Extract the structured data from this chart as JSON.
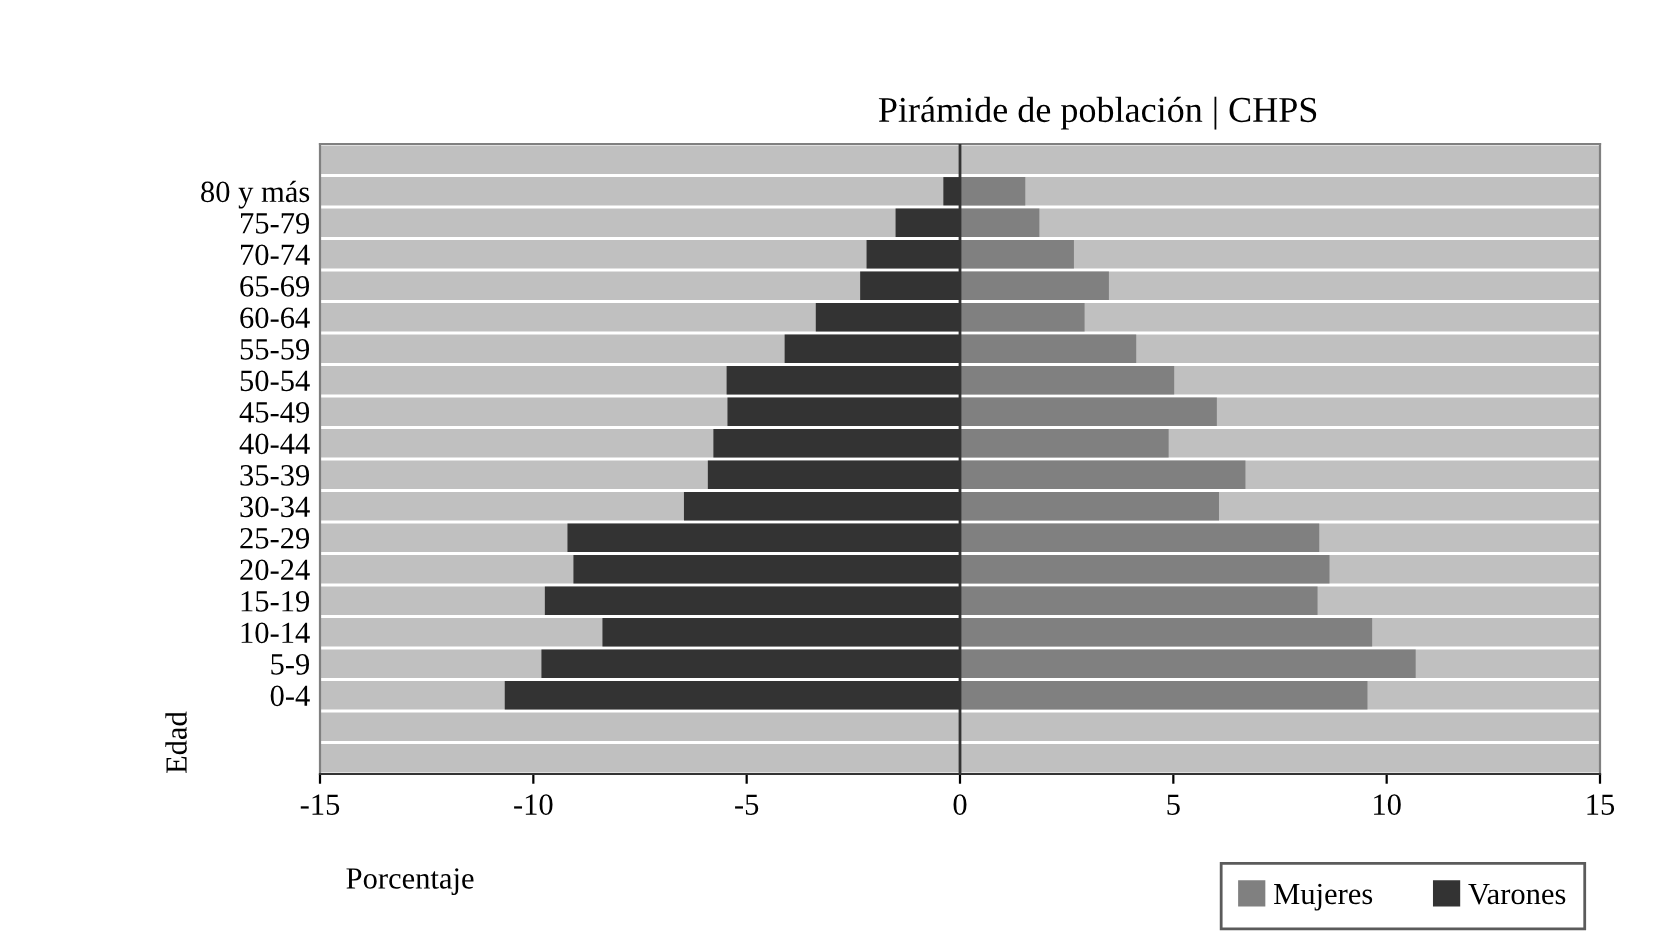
{
  "chart_data": {
    "type": "bar",
    "orientation": "horizontal",
    "title": "Pirámide de población | CHPS",
    "xlabel": "Porcentaje",
    "ylabel": "Edad",
    "categories": [
      null,
      "80 y más",
      "75-79",
      "70-74",
      "65-69",
      "60-64",
      "55-59",
      "50-54",
      "45-49",
      "40-44",
      "35-39",
      "30-34",
      "25-29",
      "20-24",
      "15-19",
      "10-14",
      "5-9",
      "0-4",
      null,
      null
    ],
    "series": [
      {
        "name": "Mujeres",
        "color": "#808080",
        "values": [
          null,
          1.53,
          1.86,
          2.67,
          3.49,
          2.92,
          4.13,
          5.02,
          6.02,
          4.89,
          6.69,
          6.07,
          8.42,
          8.66,
          8.38,
          9.66,
          10.68,
          9.55,
          null,
          null
        ]
      },
      {
        "name": "Varones",
        "color": "#333333",
        "values": [
          null,
          -0.39,
          -1.51,
          -2.19,
          -2.34,
          -3.38,
          -4.11,
          -5.47,
          -5.45,
          -5.78,
          -5.91,
          -6.47,
          -9.2,
          -9.06,
          -9.73,
          -8.38,
          -9.81,
          -10.67,
          null,
          null
        ]
      }
    ],
    "xlim": [
      -15,
      15
    ],
    "xticks": [
      {
        "value": -15,
        "label": "-15"
      },
      {
        "value": -10,
        "label": "-10"
      },
      {
        "value": -5,
        "label": "-5"
      },
      0,
      5,
      10,
      15
    ],
    "stacked": true,
    "grid": "y",
    "legend": "bottom right"
  }
}
